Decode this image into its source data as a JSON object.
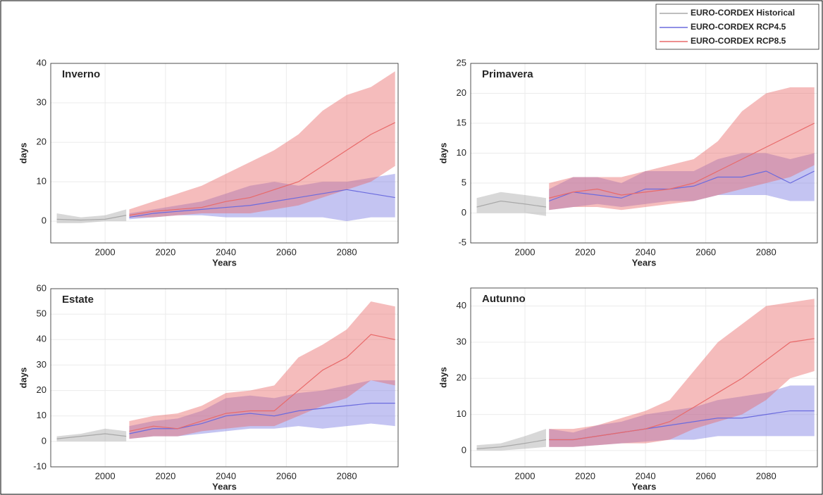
{
  "legend": [
    "EURO-CORDEX Historical",
    "EURO-CORDEX RCP4.5",
    "EURO-CORDEX RCP8.5"
  ],
  "chart_data": [
    {
      "type": "line",
      "title": "Inverno",
      "x_label": "Years",
      "y_label": "days",
      "xlim": [
        1982,
        2097
      ],
      "xticks": [
        2000,
        2020,
        2040,
        2060,
        2080
      ],
      "ylim": [
        -5.5,
        40
      ],
      "yticks": [
        0,
        10,
        20,
        30,
        40
      ],
      "grid": true,
      "series": [
        {
          "color": "#a8a8a8",
          "x": [
            1984,
            1992,
            2000,
            2007
          ],
          "values": [
            0.5,
            0.3,
            0.5,
            1.5
          ],
          "lower": [
            -0.5,
            -0.5,
            0,
            0
          ],
          "upper": [
            2,
            1,
            1.5,
            3
          ]
        },
        {
          "color": "#6b6bde",
          "x": [
            2008,
            2016,
            2024,
            2032,
            2040,
            2048,
            2056,
            2064,
            2072,
            2080,
            2088,
            2096
          ],
          "values": [
            1,
            2,
            2.5,
            3,
            3.5,
            4,
            5,
            6,
            7,
            8,
            7,
            6
          ],
          "lower": [
            0.5,
            1,
            1.5,
            1.5,
            1,
            1,
            1,
            1,
            1,
            0,
            1,
            1
          ],
          "upper": [
            2,
            3,
            4,
            5,
            7,
            9,
            10,
            9,
            10,
            10,
            11,
            12
          ]
        },
        {
          "color": "#e86a6a",
          "x": [
            2008,
            2016,
            2024,
            2032,
            2040,
            2048,
            2056,
            2064,
            2072,
            2080,
            2088,
            2096
          ],
          "values": [
            1.5,
            2.5,
            3,
            3.5,
            5,
            6,
            8,
            10,
            14,
            18,
            22,
            25
          ],
          "lower": [
            1,
            1,
            1.5,
            2,
            2,
            2,
            3,
            4,
            6,
            8,
            10,
            14
          ],
          "upper": [
            3,
            5,
            7,
            9,
            12,
            15,
            18,
            22,
            28,
            32,
            34,
            38
          ]
        }
      ]
    },
    {
      "type": "line",
      "title": "Primavera",
      "x_label": "Years",
      "y_label": "days",
      "xlim": [
        1982,
        2097
      ],
      "xticks": [
        2000,
        2020,
        2040,
        2060,
        2080
      ],
      "ylim": [
        -5,
        25
      ],
      "yticks": [
        -5,
        0,
        5,
        10,
        15,
        20,
        25
      ],
      "grid": true,
      "series": [
        {
          "color": "#a8a8a8",
          "x": [
            1984,
            1992,
            2000,
            2007
          ],
          "values": [
            1,
            2,
            1.5,
            1
          ],
          "lower": [
            0,
            0,
            0,
            -0.5
          ],
          "upper": [
            2.5,
            3.5,
            3,
            2.5
          ]
        },
        {
          "color": "#6b6bde",
          "x": [
            2008,
            2016,
            2024,
            2032,
            2040,
            2048,
            2056,
            2064,
            2072,
            2080,
            2088,
            2096
          ],
          "values": [
            2,
            3.5,
            3,
            2.5,
            4,
            4,
            4.5,
            6,
            6,
            7,
            5,
            7
          ],
          "lower": [
            0.5,
            1,
            1.5,
            1,
            1.5,
            2,
            2,
            3,
            3,
            3,
            2,
            2
          ],
          "upper": [
            4,
            6,
            6,
            5,
            7,
            7,
            7,
            9,
            10,
            10,
            9,
            10
          ]
        },
        {
          "color": "#e86a6a",
          "x": [
            2008,
            2016,
            2024,
            2032,
            2040,
            2048,
            2056,
            2064,
            2072,
            2080,
            2088,
            2096
          ],
          "values": [
            2.5,
            3.5,
            4,
            3,
            3.5,
            4,
            5,
            7,
            9,
            11,
            13,
            15
          ],
          "lower": [
            0.5,
            1,
            1,
            0.5,
            1,
            1.5,
            2,
            3,
            4,
            5,
            6,
            8
          ],
          "upper": [
            5,
            6,
            6,
            6,
            7,
            8,
            9,
            12,
            17,
            20,
            21,
            21
          ]
        }
      ]
    },
    {
      "type": "line",
      "title": "Estate",
      "x_label": "Years",
      "y_label": "days",
      "xlim": [
        1982,
        2097
      ],
      "xticks": [
        2000,
        2020,
        2040,
        2060,
        2080
      ],
      "ylim": [
        -10,
        60
      ],
      "yticks": [
        -10,
        0,
        10,
        20,
        30,
        40,
        50,
        60
      ],
      "grid": true,
      "series": [
        {
          "color": "#a8a8a8",
          "x": [
            1984,
            1992,
            2000,
            2007
          ],
          "values": [
            1,
            2,
            3,
            2
          ],
          "lower": [
            0,
            0,
            0,
            0
          ],
          "upper": [
            2,
            3,
            5,
            4
          ]
        },
        {
          "color": "#6b6bde",
          "x": [
            2008,
            2016,
            2024,
            2032,
            2040,
            2048,
            2056,
            2064,
            2072,
            2080,
            2088,
            2096
          ],
          "values": [
            3,
            5,
            5,
            7,
            10,
            11,
            10,
            12,
            13,
            14,
            15,
            15
          ],
          "lower": [
            1,
            2,
            2,
            3,
            4,
            5,
            5,
            6,
            5,
            6,
            7,
            6
          ],
          "upper": [
            6,
            8,
            9,
            12,
            17,
            18,
            17,
            19,
            20,
            22,
            24,
            24
          ]
        },
        {
          "color": "#e86a6a",
          "x": [
            2008,
            2016,
            2024,
            2032,
            2040,
            2048,
            2056,
            2064,
            2072,
            2080,
            2088,
            2096
          ],
          "values": [
            4,
            6,
            5,
            8,
            11,
            12,
            12,
            20,
            28,
            33,
            42,
            40
          ],
          "lower": [
            1,
            2,
            2,
            4,
            5,
            6,
            6,
            10,
            14,
            17,
            24,
            22
          ],
          "upper": [
            8,
            10,
            11,
            14,
            19,
            20,
            22,
            33,
            38,
            44,
            55,
            53
          ]
        }
      ]
    },
    {
      "type": "line",
      "title": "Autunno",
      "x_label": "Years",
      "y_label": "days",
      "xlim": [
        1982,
        2097
      ],
      "xticks": [
        2000,
        2020,
        2040,
        2060,
        2080
      ],
      "ylim": [
        -4.5,
        45
      ],
      "yticks": [
        0,
        10,
        20,
        30,
        40
      ],
      "grid": true,
      "series": [
        {
          "color": "#a8a8a8",
          "x": [
            1984,
            1992,
            2000,
            2007
          ],
          "values": [
            0.5,
            1,
            2,
            3
          ],
          "lower": [
            0,
            0,
            0.5,
            1
          ],
          "upper": [
            1.5,
            2,
            4,
            6
          ]
        },
        {
          "color": "#6b6bde",
          "x": [
            2008,
            2016,
            2024,
            2032,
            2040,
            2048,
            2056,
            2064,
            2072,
            2080,
            2088,
            2096
          ],
          "values": [
            3,
            3,
            4,
            5,
            6,
            7,
            8,
            9,
            9,
            10,
            11,
            11
          ],
          "lower": [
            1,
            1,
            1.5,
            2,
            2.5,
            3,
            3,
            4,
            4,
            4,
            4,
            4
          ],
          "upper": [
            6,
            5,
            7,
            8,
            10,
            11,
            12,
            14,
            15,
            16,
            18,
            18
          ]
        },
        {
          "color": "#e86a6a",
          "x": [
            2008,
            2016,
            2024,
            2032,
            2040,
            2048,
            2056,
            2064,
            2072,
            2080,
            2088,
            2096
          ],
          "values": [
            3,
            3,
            4,
            5,
            6,
            8,
            12,
            16,
            20,
            25,
            30,
            31
          ],
          "lower": [
            1,
            1,
            1.5,
            2,
            2,
            3,
            6,
            8,
            10,
            14,
            20,
            22
          ],
          "upper": [
            6,
            6,
            7,
            9,
            11,
            14,
            22,
            30,
            35,
            40,
            41,
            42
          ]
        }
      ]
    }
  ]
}
